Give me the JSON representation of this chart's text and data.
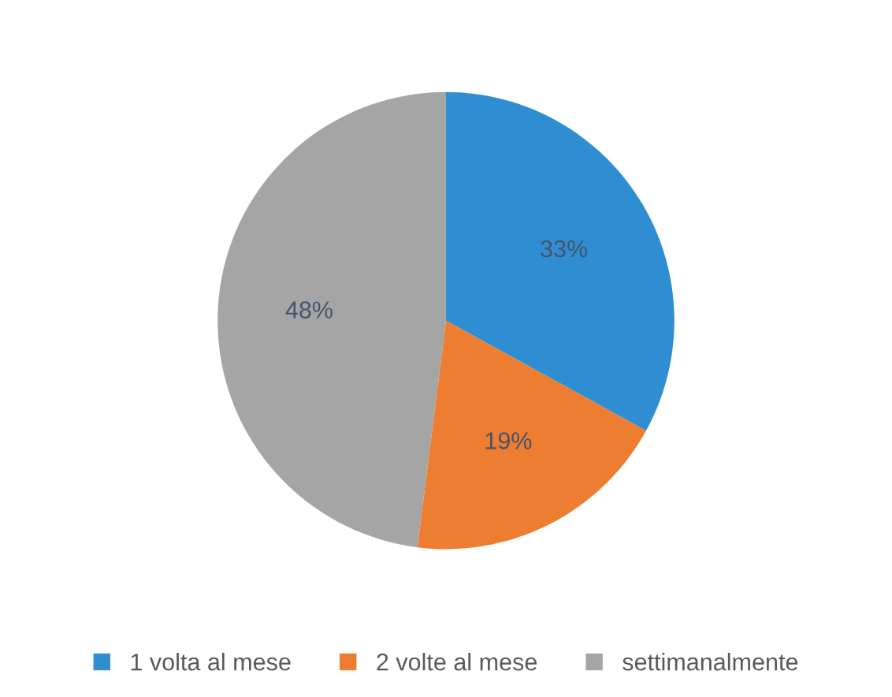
{
  "chart_data": {
    "type": "pie",
    "categories": [
      "1 volta al mese",
      "2 volte al mese",
      "settimanalmente"
    ],
    "values": [
      33,
      19,
      48
    ],
    "colors": [
      "#2f8ed1",
      "#ed7d31",
      "#a5a5a5"
    ],
    "value_labels": [
      "33%",
      "19%",
      "48%"
    ],
    "legend": "bottom"
  }
}
